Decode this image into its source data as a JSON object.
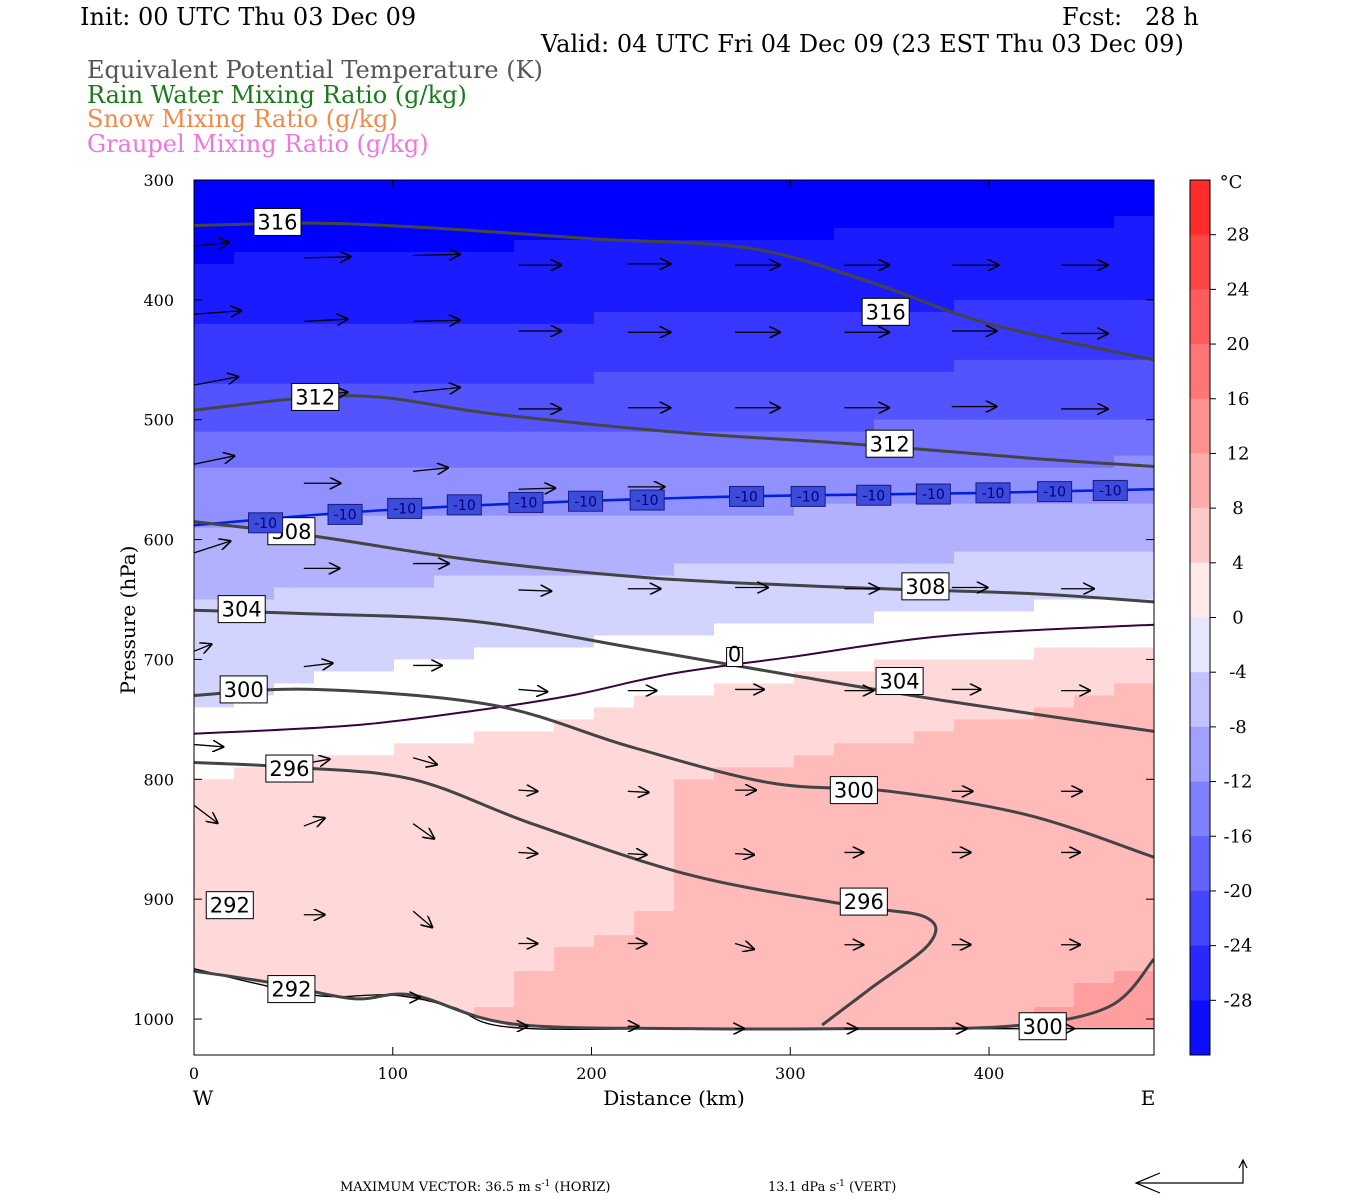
{
  "header": {
    "init": "Init: 00 UTC Thu 03 Dec 09",
    "fcst": "Fcst:   28 h",
    "valid": "Valid: 04 UTC Fri 04 Dec 09 (23 EST Thu 03 Dec 09)",
    "fields": [
      {
        "label": "Equivalent Potential Temperature (K)",
        "color": "#555555"
      },
      {
        "label": "Rain Water Mixing Ratio (g/kg)",
        "color": "#1a7a1a"
      },
      {
        "label": "Snow Mixing Ratio (g/kg)",
        "color": "#f08a4b"
      },
      {
        "label": "Graupel Mixing Ratio (g/kg)",
        "color": "#ee77dd"
      }
    ]
  },
  "footer": {
    "max_vector": "MAXIMUM VECTOR:  36.5 m s",
    "horiz_sup": "-1",
    "horiz_unit": " (HORIZ)",
    "vert": "13.1 dPa s",
    "vert_sup": "-1",
    "vert_unit": " (VERT)"
  },
  "chart_data": {
    "type": "heatmap",
    "xlabel": "Distance (km)",
    "ylabel": "Pressure (hPa)",
    "x_ticks": [
      "0",
      "100",
      "200",
      "300",
      "400"
    ],
    "x_tick_values": [
      0,
      100,
      200,
      300,
      400
    ],
    "xlim": [
      0,
      483
    ],
    "y_ticks": [
      "300",
      "400",
      "500",
      "600",
      "700",
      "800",
      "900",
      "1000"
    ],
    "y_tick_values": [
      300,
      400,
      500,
      600,
      700,
      800,
      900,
      1000
    ],
    "ylim": [
      300,
      1030
    ],
    "west_label": "W",
    "east_label": "E",
    "colorbar": {
      "unit": "°C",
      "labels": [
        "28",
        "24",
        "20",
        "16",
        "12",
        "8",
        "4",
        "0",
        "-4",
        "-8",
        "-12",
        "-16",
        "-20",
        "-24",
        "-28"
      ],
      "values": [
        28,
        24,
        20,
        16,
        12,
        8,
        4,
        0,
        -4,
        -8,
        -12,
        -16,
        -20,
        -24,
        -28
      ],
      "range": [
        -32,
        32
      ],
      "low_color": "#0000ff",
      "mid_color": "#ffffff",
      "high_color": "#ff2020"
    },
    "temperature_shading": {
      "description": "Temperature (°C) bands by pressure at west / east ends",
      "profile_west": [
        [
          300,
          -34
        ],
        [
          400,
          -28
        ],
        [
          500,
          -20
        ],
        [
          560,
          -12
        ],
        [
          600,
          -9
        ],
        [
          650,
          -6
        ],
        [
          700,
          -4
        ],
        [
          760,
          -1
        ],
        [
          800,
          2
        ],
        [
          900,
          3
        ],
        [
          1000,
          4
        ]
      ],
      "profile_east": [
        [
          300,
          -32
        ],
        [
          400,
          -26
        ],
        [
          500,
          -18
        ],
        [
          560,
          -11
        ],
        [
          620,
          -5
        ],
        [
          670,
          0
        ],
        [
          720,
          6
        ],
        [
          800,
          10
        ],
        [
          900,
          9
        ],
        [
          1000,
          11
        ]
      ]
    },
    "theta_e_contours": [
      {
        "value": 316,
        "points": [
          [
            0,
            338
          ],
          [
            60,
            336
          ],
          [
            120,
            340
          ],
          [
            200,
            349
          ],
          [
            280,
            357
          ],
          [
            340,
            385
          ],
          [
            400,
            420
          ],
          [
            483,
            450
          ]
        ]
      },
      {
        "value": 312,
        "points": [
          [
            0,
            492
          ],
          [
            80,
            480
          ],
          [
            150,
            495
          ],
          [
            240,
            510
          ],
          [
            330,
            520
          ],
          [
            420,
            532
          ],
          [
            483,
            539
          ]
        ]
      },
      {
        "value": 308,
        "points": [
          [
            0,
            585
          ],
          [
            60,
            597
          ],
          [
            140,
            617
          ],
          [
            230,
            632
          ],
          [
            330,
            640
          ],
          [
            420,
            645
          ],
          [
            483,
            652
          ]
        ]
      },
      {
        "value": 304,
        "points": [
          [
            0,
            659
          ],
          [
            60,
            662
          ],
          [
            140,
            668
          ],
          [
            220,
            690
          ],
          [
            300,
            713
          ],
          [
            380,
            735
          ],
          [
            483,
            760
          ]
        ]
      },
      {
        "value": 300,
        "points": [
          [
            0,
            730
          ],
          [
            60,
            725
          ],
          [
            150,
            738
          ],
          [
            220,
            773
          ],
          [
            290,
            803
          ],
          [
            350,
            810
          ],
          [
            420,
            830
          ],
          [
            483,
            865
          ]
        ]
      },
      {
        "value": 296,
        "points": [
          [
            0,
            786
          ],
          [
            50,
            790
          ],
          [
            110,
            800
          ],
          [
            170,
            837
          ],
          [
            250,
            880
          ],
          [
            330,
            905
          ],
          [
            368,
            915
          ],
          [
            370,
            937
          ],
          [
            340,
            975
          ],
          [
            316,
            1005
          ]
        ]
      },
      {
        "value": 292,
        "points": [
          [
            0,
            960
          ],
          [
            40,
            970
          ],
          [
            80,
            983
          ],
          [
            110,
            980
          ],
          [
            160,
            1004
          ],
          [
            250,
            1008
          ],
          [
            330,
            1008
          ],
          [
            410,
            1006
          ],
          [
            460,
            990
          ],
          [
            483,
            950
          ]
        ]
      }
    ],
    "isotherm_minus10": {
      "label": "-10",
      "points": [
        [
          0,
          588
        ],
        [
          100,
          575
        ],
        [
          250,
          565
        ],
        [
          400,
          561
        ],
        [
          483,
          558
        ]
      ]
    },
    "isotherm_0": {
      "label": "0",
      "points": [
        [
          0,
          762
        ],
        [
          80,
          755
        ],
        [
          140,
          743
        ],
        [
          190,
          730
        ],
        [
          240,
          712
        ],
        [
          300,
          698
        ],
        [
          380,
          680
        ],
        [
          483,
          671
        ]
      ]
    },
    "surface": {
      "points": [
        [
          0,
          958
        ],
        [
          60,
          980
        ],
        [
          100,
          980
        ],
        [
          130,
          990
        ],
        [
          160,
          1007
        ],
        [
          260,
          1008
        ],
        [
          483,
          1008
        ]
      ]
    },
    "contour_labels": [
      {
        "text": "316",
        "x": 42,
        "p": 335
      },
      {
        "text": "316",
        "x": 348,
        "p": 410
      },
      {
        "text": "312",
        "x": 61,
        "p": 481
      },
      {
        "text": "312",
        "x": 350,
        "p": 520
      },
      {
        "text": "308",
        "x": 49,
        "p": 593
      },
      {
        "text": "308",
        "x": 368,
        "p": 639
      },
      {
        "text": "304",
        "x": 24,
        "p": 658
      },
      {
        "text": "304",
        "x": 355,
        "p": 718
      },
      {
        "text": "300",
        "x": 25,
        "p": 725
      },
      {
        "text": "300",
        "x": 332,
        "p": 809
      },
      {
        "text": "296",
        "x": 48,
        "p": 791
      },
      {
        "text": "296",
        "x": 337,
        "p": 902
      },
      {
        "text": "292",
        "x": 18,
        "p": 905
      },
      {
        "text": "292",
        "x": 49,
        "p": 975
      },
      {
        "text": "300",
        "x": 427,
        "p": 1006
      }
    ],
    "isotherm_labels": [
      {
        "text": "-10",
        "x": 36,
        "p": 586
      },
      {
        "text": "-10",
        "x": 76,
        "p": 579
      },
      {
        "text": "-10",
        "x": 106,
        "p": 574
      },
      {
        "text": "-10",
        "x": 136,
        "p": 571
      },
      {
        "text": "-10",
        "x": 167,
        "p": 569
      },
      {
        "text": "-10",
        "x": 197,
        "p": 568
      },
      {
        "text": "-10",
        "x": 228,
        "p": 567
      },
      {
        "text": "-10",
        "x": 278,
        "p": 564
      },
      {
        "text": "-10",
        "x": 309,
        "p": 564
      },
      {
        "text": "-10",
        "x": 342,
        "p": 563
      },
      {
        "text": "-10",
        "x": 372,
        "p": 562
      },
      {
        "text": "-10",
        "x": 402,
        "p": 561
      },
      {
        "text": "-10",
        "x": 433,
        "p": 560
      },
      {
        "text": "-10",
        "x": 461,
        "p": 559
      }
    ],
    "zero_label": {
      "text": "0",
      "x": 272,
      "p": 698
    },
    "wind_vectors": [
      {
        "x": 0,
        "p": 355,
        "dx": 36,
        "dp": -3
      },
      {
        "x": 55,
        "p": 365,
        "dx": 48,
        "dp": -1
      },
      {
        "x": 110,
        "p": 363,
        "dx": 48,
        "dp": -1
      },
      {
        "x": 163,
        "p": 371,
        "dx": 44,
        "dp": 0
      },
      {
        "x": 218,
        "p": 370,
        "dx": 44,
        "dp": 0
      },
      {
        "x": 272,
        "p": 371,
        "dx": 46,
        "dp": 0
      },
      {
        "x": 327,
        "p": 371,
        "dx": 46,
        "dp": 0
      },
      {
        "x": 381,
        "p": 371,
        "dx": 48,
        "dp": 0
      },
      {
        "x": 436,
        "p": 371,
        "dx": 48,
        "dp": 0
      },
      {
        "x": 0,
        "p": 412,
        "dx": 48,
        "dp": -3
      },
      {
        "x": 55,
        "p": 418,
        "dx": 45,
        "dp": -2
      },
      {
        "x": 110,
        "p": 418,
        "dx": 48,
        "dp": -1
      },
      {
        "x": 163,
        "p": 426,
        "dx": 44,
        "dp": 0
      },
      {
        "x": 218,
        "p": 427,
        "dx": 44,
        "dp": 0
      },
      {
        "x": 272,
        "p": 427,
        "dx": 46,
        "dp": 0
      },
      {
        "x": 327,
        "p": 427,
        "dx": 46,
        "dp": 0
      },
      {
        "x": 381,
        "p": 426,
        "dx": 46,
        "dp": 0
      },
      {
        "x": 436,
        "p": 428,
        "dx": 48,
        "dp": 0
      },
      {
        "x": 0,
        "p": 471,
        "dx": 45,
        "dp": -7
      },
      {
        "x": 55,
        "p": 480,
        "dx": 45,
        "dp": -3
      },
      {
        "x": 110,
        "p": 477,
        "dx": 48,
        "dp": -4
      },
      {
        "x": 163,
        "p": 491,
        "dx": 44,
        "dp": 0
      },
      {
        "x": 218,
        "p": 490,
        "dx": 44,
        "dp": 0
      },
      {
        "x": 272,
        "p": 490,
        "dx": 46,
        "dp": 0
      },
      {
        "x": 327,
        "p": 490,
        "dx": 46,
        "dp": 0
      },
      {
        "x": 381,
        "p": 489,
        "dx": 46,
        "dp": 0
      },
      {
        "x": 436,
        "p": 491,
        "dx": 48,
        "dp": 0
      },
      {
        "x": 0,
        "p": 537,
        "dx": 41,
        "dp": -7
      },
      {
        "x": 55,
        "p": 553,
        "dx": 38,
        "dp": 0
      },
      {
        "x": 110,
        "p": 543,
        "dx": 36,
        "dp": -3
      },
      {
        "x": 163,
        "p": 558,
        "dx": 38,
        "dp": -1
      },
      {
        "x": 218,
        "p": 556,
        "dx": 38,
        "dp": 0
      },
      {
        "x": 0,
        "p": 611,
        "dx": 37,
        "dp": -10
      },
      {
        "x": 55,
        "p": 624,
        "dx": 37,
        "dp": 0
      },
      {
        "x": 110,
        "p": 620,
        "dx": 37,
        "dp": 0
      },
      {
        "x": 163,
        "p": 642,
        "dx": 34,
        "dp": 1
      },
      {
        "x": 218,
        "p": 641,
        "dx": 34,
        "dp": 0
      },
      {
        "x": 272,
        "p": 640,
        "dx": 34,
        "dp": 0
      },
      {
        "x": 327,
        "p": 641,
        "dx": 36,
        "dp": 0
      },
      {
        "x": 381,
        "p": 640,
        "dx": 37,
        "dp": 0
      },
      {
        "x": 436,
        "p": 641,
        "dx": 34,
        "dp": 0
      },
      {
        "x": 0,
        "p": 693,
        "dx": 18,
        "dp": -6
      },
      {
        "x": 55,
        "p": 706,
        "dx": 30,
        "dp": -3
      },
      {
        "x": 110,
        "p": 705,
        "dx": 30,
        "dp": 0
      },
      {
        "x": 163,
        "p": 725,
        "dx": 30,
        "dp": 2
      },
      {
        "x": 218,
        "p": 726,
        "dx": 30,
        "dp": 0
      },
      {
        "x": 272,
        "p": 725,
        "dx": 30,
        "dp": 0
      },
      {
        "x": 327,
        "p": 726,
        "dx": 30,
        "dp": 0
      },
      {
        "x": 381,
        "p": 725,
        "dx": 30,
        "dp": 0
      },
      {
        "x": 436,
        "p": 726,
        "dx": 30,
        "dp": 0
      },
      {
        "x": 0,
        "p": 771,
        "dx": 30,
        "dp": 2
      },
      {
        "x": 55,
        "p": 787,
        "dx": 27,
        "dp": -4
      },
      {
        "x": 110,
        "p": 782,
        "dx": 25,
        "dp": 6
      },
      {
        "x": 163,
        "p": 809,
        "dx": 20,
        "dp": 1
      },
      {
        "x": 218,
        "p": 810,
        "dx": 22,
        "dp": 1
      },
      {
        "x": 272,
        "p": 809,
        "dx": 22,
        "dp": 0
      },
      {
        "x": 327,
        "p": 809,
        "dx": 22,
        "dp": 0
      },
      {
        "x": 381,
        "p": 810,
        "dx": 22,
        "dp": 0
      },
      {
        "x": 436,
        "p": 810,
        "dx": 22,
        "dp": 0
      },
      {
        "x": 0,
        "p": 822,
        "dx": 24,
        "dp": 15
      },
      {
        "x": 55,
        "p": 839,
        "dx": 22,
        "dp": -7
      },
      {
        "x": 110,
        "p": 837,
        "dx": 22,
        "dp": 13
      },
      {
        "x": 163,
        "p": 861,
        "dx": 20,
        "dp": 1
      },
      {
        "x": 218,
        "p": 862,
        "dx": 20,
        "dp": 1
      },
      {
        "x": 272,
        "p": 862,
        "dx": 20,
        "dp": 1
      },
      {
        "x": 327,
        "p": 861,
        "dx": 20,
        "dp": 0
      },
      {
        "x": 381,
        "p": 861,
        "dx": 20,
        "dp": 0
      },
      {
        "x": 436,
        "p": 861,
        "dx": 20,
        "dp": 0
      },
      {
        "x": 55,
        "p": 913,
        "dx": 22,
        "dp": 0
      },
      {
        "x": 110,
        "p": 910,
        "dx": 20,
        "dp": 14
      },
      {
        "x": 163,
        "p": 937,
        "dx": 20,
        "dp": 0
      },
      {
        "x": 218,
        "p": 937,
        "dx": 20,
        "dp": 0
      },
      {
        "x": 272,
        "p": 937,
        "dx": 20,
        "dp": 5
      },
      {
        "x": 327,
        "p": 938,
        "dx": 20,
        "dp": 0
      },
      {
        "x": 381,
        "p": 938,
        "dx": 20,
        "dp": 0
      },
      {
        "x": 436,
        "p": 938,
        "dx": 20,
        "dp": 0
      },
      {
        "x": 110,
        "p": 982,
        "dx": 8,
        "dp": 0
      },
      {
        "x": 163,
        "p": 1006,
        "dx": 10,
        "dp": 0
      },
      {
        "x": 218,
        "p": 1006,
        "dx": 12,
        "dp": 0
      },
      {
        "x": 272,
        "p": 1008,
        "dx": 10,
        "dp": 0
      },
      {
        "x": 327,
        "p": 1008,
        "dx": 14,
        "dp": 0
      },
      {
        "x": 381,
        "p": 1008,
        "dx": 16,
        "dp": 0
      },
      {
        "x": 436,
        "p": 1008,
        "dx": 14,
        "dp": 0
      }
    ]
  }
}
